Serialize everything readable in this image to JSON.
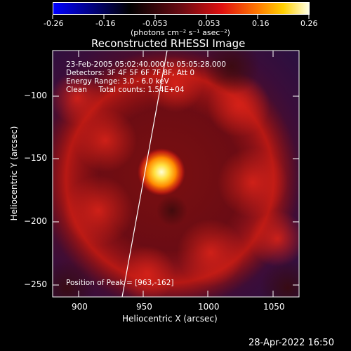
{
  "colorbar": {
    "tick_labels": [
      "-0.26",
      "-0.16",
      "-0.053",
      "0.053",
      "0.16",
      "0.26"
    ],
    "units": "(photons cm⁻² s⁻¹ asec⁻²)",
    "range": [
      -0.26,
      0.26
    ],
    "gradient": [
      "#0000ff",
      "#000000",
      "#6a0a12",
      "#e01010",
      "#ff7a00",
      "#ffd000",
      "#ffffe6"
    ]
  },
  "plot": {
    "title": "Reconstructed RHESSI Image",
    "xlabel": "Heliocentric X (arcsec)",
    "ylabel": "Heliocentric Y (arcsec)",
    "x_ticks": [
      900,
      950,
      1000,
      1050
    ],
    "y_ticks": [
      -100,
      -150,
      -200,
      -250
    ],
    "x_tick_labels": [
      "900",
      "950",
      "1000",
      "1050"
    ],
    "y_tick_labels": [
      "−100",
      "−150",
      "−200",
      "−250"
    ],
    "xlim": [
      880,
      1070
    ],
    "ylim": [
      -262,
      -72
    ],
    "annotations": [
      "23-Feb-2005 05:02:40.000 to 05:05:28.000",
      "Detectors: 3F 4F 5F 6F 7F 8F, Att 0",
      "Energy Range: 3.0 - 6.0 keV",
      "Clean     Total counts: 1.54E+04"
    ],
    "peak_label": "Position of Peak = [963,-162]",
    "peak": [
      963,
      -162
    ],
    "limb_line": [
      [
        935,
        -262
      ],
      [
        970,
        -72
      ]
    ]
  },
  "footer": {
    "date": "28-Apr-2022 16:50"
  }
}
